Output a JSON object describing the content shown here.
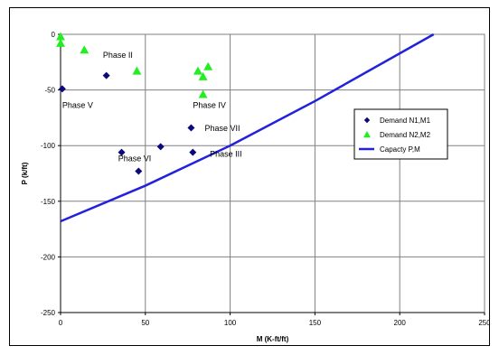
{
  "chart_data": {
    "type": "scatter",
    "xlabel": "M (K-ft/ft)",
    "ylabel": "P (k/ft)",
    "xlim": [
      0,
      250
    ],
    "ylim": [
      -250,
      0
    ],
    "x_ticks": [
      0,
      50,
      100,
      150,
      200,
      250
    ],
    "y_ticks": [
      0,
      -50,
      -100,
      -150,
      -200,
      -250
    ],
    "grid": true,
    "legend_placement": "right",
    "series": [
      {
        "name": "Demand N1,M1",
        "marker": "diamond",
        "color": "#0a0a7a",
        "points": [
          [
            1,
            -49
          ],
          [
            27,
            -37
          ],
          [
            36,
            -106
          ],
          [
            46,
            -123
          ],
          [
            59,
            -101
          ],
          [
            77,
            -84
          ],
          [
            78,
            -106
          ]
        ]
      },
      {
        "name": "Demand N2,M2",
        "marker": "triangle",
        "color": "#22ee22",
        "points": [
          [
            0,
            -2
          ],
          [
            0,
            -8
          ],
          [
            14,
            -14
          ],
          [
            45,
            -33
          ],
          [
            81,
            -33
          ],
          [
            84,
            -38
          ],
          [
            87,
            -29
          ],
          [
            84,
            -54
          ]
        ]
      },
      {
        "name": "Capacty P,M",
        "marker": "line",
        "color": "#2222dd",
        "points": [
          [
            0,
            -168
          ],
          [
            50,
            -136
          ],
          [
            100,
            -100
          ],
          [
            150,
            -60
          ],
          [
            220,
            0
          ]
        ]
      }
    ],
    "annotations": [
      {
        "text": "Phase II",
        "x": 25,
        "y": -21
      },
      {
        "text": "Phase V",
        "x": 1,
        "y": -66
      },
      {
        "text": "Phase IV",
        "x": 78,
        "y": -66
      },
      {
        "text": "Phase VII",
        "x": 85,
        "y": -87
      },
      {
        "text": "Phase VI",
        "x": 34,
        "y": -114
      },
      {
        "text": "Phase III",
        "x": 88,
        "y": -110
      }
    ]
  }
}
